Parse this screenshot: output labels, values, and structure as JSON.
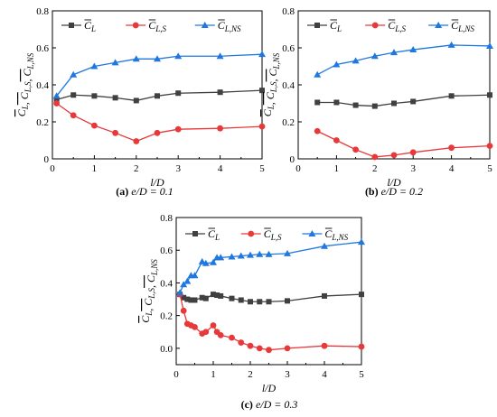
{
  "colors": {
    "cl": "#404040",
    "cls": "#e8393a",
    "clns": "#1f77e0"
  },
  "legend_labels": {
    "cl": "C",
    "cl_sub": "L",
    "cls": "C",
    "cls_sub": "L,S",
    "clns": "C",
    "clns_sub": "L,NS"
  },
  "ylabel_parts": [
    "C",
    "L",
    ", ",
    "C",
    "L,S",
    ", ",
    "C",
    "L,NS"
  ],
  "chart_data": [
    {
      "type": "line",
      "caption": {
        "letter": "(a)",
        "text": " e/D = 0.1"
      },
      "xlabel": "l/D",
      "xlim": [
        0,
        5
      ],
      "ylim": [
        0,
        0.8
      ],
      "xticks": [
        0,
        1,
        2,
        3,
        4,
        5
      ],
      "yticks": [
        0,
        0.2,
        0.4,
        0.6,
        0.8
      ],
      "ytick_labels": [
        "0",
        "0.2",
        "0.4",
        "0.6",
        "0.8"
      ],
      "series": [
        {
          "key": "cl",
          "marker": "square",
          "x": [
            0.1,
            0.5,
            1,
            1.5,
            2,
            2.5,
            3,
            4,
            5
          ],
          "y": [
            0.32,
            0.345,
            0.34,
            0.33,
            0.315,
            0.34,
            0.355,
            0.36,
            0.37
          ]
        },
        {
          "key": "cls",
          "marker": "circle",
          "x": [
            0.1,
            0.5,
            1,
            1.5,
            2,
            2.5,
            3,
            4,
            5
          ],
          "y": [
            0.3,
            0.235,
            0.18,
            0.14,
            0.095,
            0.14,
            0.16,
            0.165,
            0.175
          ]
        },
        {
          "key": "clns",
          "marker": "triangle",
          "x": [
            0.1,
            0.5,
            1,
            1.5,
            2,
            2.5,
            3,
            4,
            5
          ],
          "y": [
            0.34,
            0.455,
            0.5,
            0.52,
            0.54,
            0.54,
            0.555,
            0.555,
            0.565
          ]
        }
      ]
    },
    {
      "type": "line",
      "caption": {
        "letter": "(b)",
        "text": " e/D = 0.2"
      },
      "xlabel": "l/D",
      "xlim": [
        0,
        5
      ],
      "ylim": [
        0,
        0.8
      ],
      "xticks": [
        0,
        1,
        2,
        3,
        4,
        5
      ],
      "yticks": [
        0,
        0.2,
        0.4,
        0.6,
        0.8
      ],
      "ytick_labels": [
        "0",
        "0.2",
        "0.4",
        "0.6",
        "0.8"
      ],
      "series": [
        {
          "key": "cl",
          "marker": "square",
          "x": [
            0.5,
            1,
            1.5,
            2,
            2.5,
            3,
            4,
            5
          ],
          "y": [
            0.305,
            0.305,
            0.29,
            0.285,
            0.3,
            0.31,
            0.34,
            0.345
          ]
        },
        {
          "key": "cls",
          "marker": "circle",
          "x": [
            0.5,
            1,
            1.5,
            2,
            2.5,
            3,
            4,
            5
          ],
          "y": [
            0.15,
            0.1,
            0.05,
            0.01,
            0.02,
            0.035,
            0.06,
            0.07
          ]
        },
        {
          "key": "clns",
          "marker": "triangle",
          "x": [
            0.5,
            1,
            1.5,
            2,
            2.5,
            3,
            4,
            5
          ],
          "y": [
            0.455,
            0.51,
            0.53,
            0.555,
            0.575,
            0.59,
            0.615,
            0.61
          ]
        }
      ]
    },
    {
      "type": "line",
      "caption": {
        "letter": "(c)",
        "text": " e/D = 0.3"
      },
      "xlabel": "l/D",
      "xlim": [
        0,
        5
      ],
      "ylim": [
        -0.1,
        0.8
      ],
      "xticks": [
        0,
        1,
        2,
        3,
        4,
        5
      ],
      "yticks": [
        0,
        0.2,
        0.4,
        0.6,
        0.8
      ],
      "ytick_labels": [
        "0.0",
        "0.2",
        "0.4",
        "0.6",
        "0.8"
      ],
      "series": [
        {
          "key": "cl",
          "marker": "square",
          "x": [
            0.1,
            0.2,
            0.3,
            0.4,
            0.5,
            0.7,
            0.8,
            1.0,
            1.1,
            1.2,
            1.5,
            1.75,
            2,
            2.25,
            2.5,
            3,
            4,
            5
          ],
          "y": [
            0.33,
            0.31,
            0.3,
            0.295,
            0.295,
            0.31,
            0.305,
            0.33,
            0.325,
            0.32,
            0.305,
            0.295,
            0.285,
            0.285,
            0.285,
            0.29,
            0.32,
            0.33
          ]
        },
        {
          "key": "cls",
          "marker": "circle",
          "x": [
            0.1,
            0.2,
            0.3,
            0.4,
            0.5,
            0.7,
            0.8,
            1.0,
            1.1,
            1.2,
            1.5,
            1.75,
            2,
            2.25,
            2.5,
            3,
            4,
            5
          ],
          "y": [
            0.33,
            0.23,
            0.15,
            0.14,
            0.13,
            0.09,
            0.1,
            0.14,
            0.1,
            0.08,
            0.065,
            0.035,
            0.015,
            0.0,
            -0.01,
            0.0,
            0.015,
            0.01
          ]
        },
        {
          "key": "clns",
          "marker": "triangle",
          "x": [
            0.1,
            0.2,
            0.3,
            0.4,
            0.5,
            0.7,
            0.8,
            1.0,
            1.1,
            1.2,
            1.5,
            1.75,
            2,
            2.25,
            2.5,
            3,
            4,
            5
          ],
          "y": [
            0.34,
            0.39,
            0.41,
            0.445,
            0.445,
            0.53,
            0.52,
            0.525,
            0.555,
            0.555,
            0.56,
            0.565,
            0.57,
            0.575,
            0.575,
            0.58,
            0.625,
            0.65
          ]
        }
      ]
    }
  ]
}
